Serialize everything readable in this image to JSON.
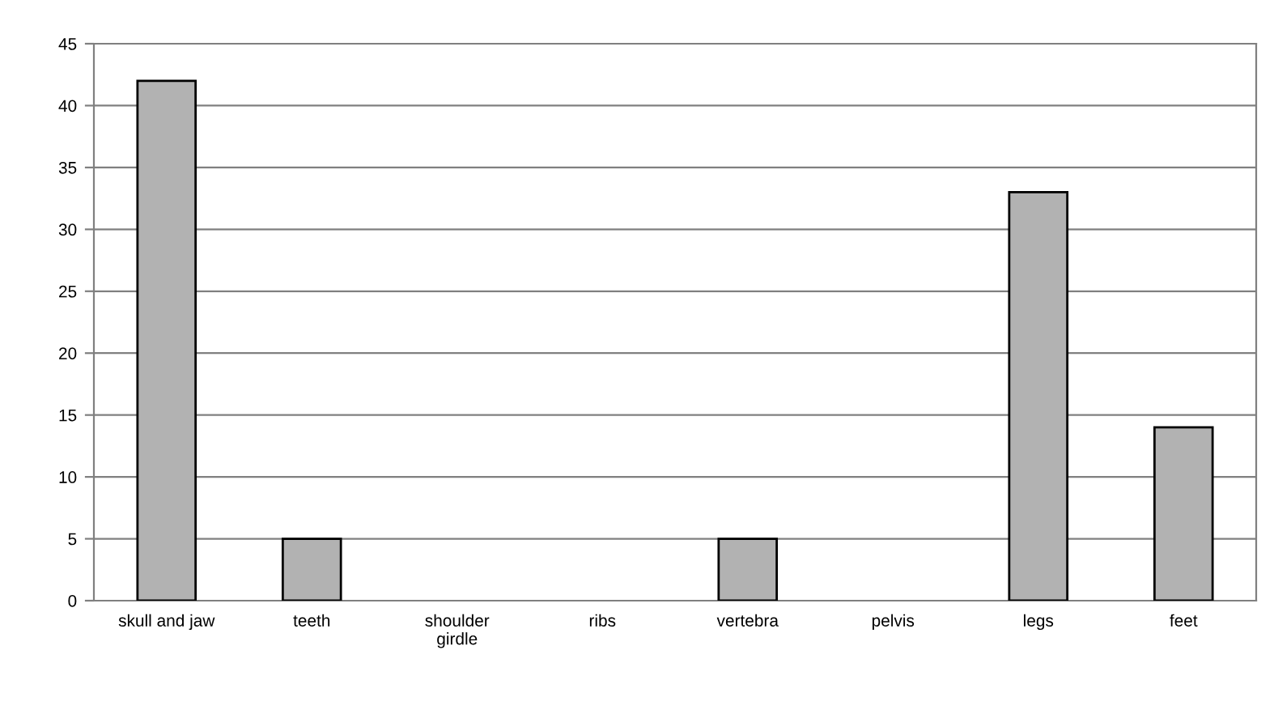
{
  "chart_data": {
    "type": "bar",
    "categories": [
      "skull and jaw",
      "teeth",
      "shoulder\ngirdle",
      "ribs",
      "vertebra",
      "pelvis",
      "legs",
      "feet"
    ],
    "values": [
      42,
      5,
      0,
      0,
      5,
      0,
      33,
      14
    ],
    "color": "#b2b2b2",
    "ylim": [
      0,
      45
    ],
    "yticks": [
      0,
      5,
      10,
      15,
      20,
      25,
      30,
      35,
      40,
      45
    ],
    "grid": "y",
    "legend": false
  }
}
